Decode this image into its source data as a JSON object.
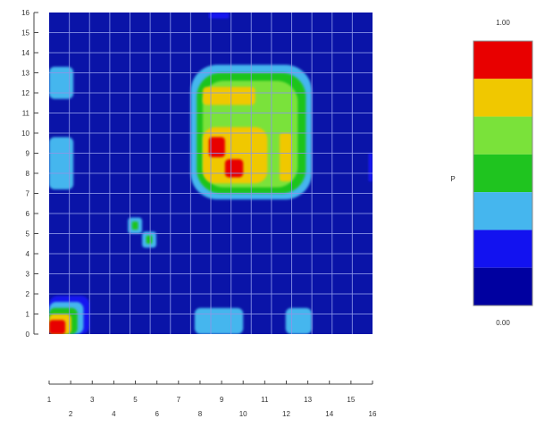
{
  "chart_data": {
    "type": "heatmap",
    "title": "",
    "xlabel": "",
    "ylabel": "",
    "x_range": [
      0,
      16
    ],
    "y_range": [
      0,
      16
    ],
    "y_ticks": [
      "0",
      "1",
      "2",
      "3",
      "4",
      "5",
      "6",
      "7",
      "8",
      "9",
      "10",
      "11",
      "12",
      "13",
      "14",
      "15",
      "16"
    ],
    "x_ticks_upper": [
      "1",
      "3",
      "5",
      "7",
      "9",
      "11",
      "13",
      "15"
    ],
    "x_ticks_lower": [
      "2",
      "4",
      "6",
      "8",
      "10",
      "12",
      "14",
      "16"
    ],
    "grid": true,
    "legend": {
      "placement": "right",
      "max_label": "1.00",
      "min_label": "0.00",
      "side_label": "P",
      "colors": [
        "#e80000",
        "#f0c800",
        "#7ae23a",
        "#1fc41f",
        "#45b6ee",
        "#1212f0",
        "#0000a0"
      ]
    },
    "background_color": "#0a14a8",
    "grid_color": "#8c96e6",
    "blobs": [
      {
        "x0": 7.0,
        "x1": 13.0,
        "y0": 6.7,
        "y1": 13.4,
        "level": 4
      },
      {
        "x0": 7.3,
        "x1": 12.7,
        "y0": 7.0,
        "y1": 13.0,
        "level": 3
      },
      {
        "x0": 7.6,
        "x1": 12.3,
        "y0": 7.3,
        "y1": 12.6,
        "level": 2
      },
      {
        "x0": 7.6,
        "x1": 10.8,
        "y0": 7.5,
        "y1": 10.3,
        "level": 1
      },
      {
        "x0": 11.4,
        "x1": 12.0,
        "y0": 7.6,
        "y1": 10.0,
        "level": 1
      },
      {
        "x0": 7.6,
        "x1": 10.2,
        "y0": 11.4,
        "y1": 12.3,
        "level": 1
      },
      {
        "x0": 7.9,
        "x1": 8.7,
        "y0": 8.8,
        "y1": 9.8,
        "level": 0
      },
      {
        "x0": 8.7,
        "x1": 9.6,
        "y0": 7.8,
        "y1": 8.7,
        "level": 0
      },
      {
        "x0": 0.0,
        "x1": 1.2,
        "y0": 11.7,
        "y1": 13.3,
        "level": 4
      },
      {
        "x0": 0.0,
        "x1": 1.2,
        "y0": 7.2,
        "y1": 9.8,
        "level": 4
      },
      {
        "x0": 15.8,
        "x1": 16.0,
        "y0": 7.6,
        "y1": 9.0,
        "level": 5
      },
      {
        "x0": 3.9,
        "x1": 4.6,
        "y0": 5.0,
        "y1": 5.8,
        "level": 4
      },
      {
        "x0": 4.6,
        "x1": 5.3,
        "y0": 4.3,
        "y1": 5.1,
        "level": 4
      },
      {
        "x0": 4.1,
        "x1": 4.4,
        "y0": 5.2,
        "y1": 5.6,
        "level": 3
      },
      {
        "x0": 4.8,
        "x1": 5.1,
        "y0": 4.5,
        "y1": 4.9,
        "level": 3
      },
      {
        "x0": 7.2,
        "x1": 9.6,
        "y0": 0.0,
        "y1": 1.3,
        "level": 4
      },
      {
        "x0": 11.7,
        "x1": 13.0,
        "y0": 0.0,
        "y1": 1.3,
        "level": 4
      },
      {
        "x0": 7.9,
        "x1": 8.9,
        "y0": 15.7,
        "y1": 16.0,
        "level": 5
      },
      {
        "x0": 0.0,
        "x1": 2.0,
        "y0": 0.0,
        "y1": 1.9,
        "level": 5
      },
      {
        "x0": 0.0,
        "x1": 1.7,
        "y0": 0.0,
        "y1": 1.6,
        "level": 4
      },
      {
        "x0": 0.0,
        "x1": 1.4,
        "y0": 0.0,
        "y1": 1.3,
        "level": 3
      },
      {
        "x0": 0.0,
        "x1": 1.1,
        "y0": 0.0,
        "y1": 1.0,
        "level": 1
      },
      {
        "x0": 0.0,
        "x1": 0.8,
        "y0": 0.0,
        "y1": 0.7,
        "level": 0
      }
    ]
  }
}
